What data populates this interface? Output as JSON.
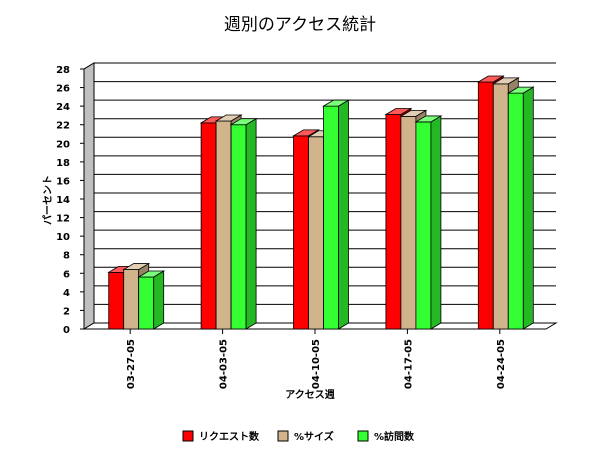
{
  "chart_data": {
    "type": "bar",
    "title": "週別のアクセス統計",
    "xlabel": "アクセス週",
    "ylabel": "パーセント",
    "categories": [
      "03-27-05",
      "04-03-05",
      "04-10-05",
      "04-17-05",
      "04-24-05"
    ],
    "series": [
      {
        "name": "リクエスト数",
        "color": "#ff0000",
        "values": [
          6.1,
          22.2,
          20.8,
          23.1,
          26.6
        ]
      },
      {
        "name": "%サイズ",
        "color": "#d2b48c",
        "values": [
          6.4,
          22.4,
          20.7,
          22.9,
          26.4
        ]
      },
      {
        "name": "%訪問数",
        "color": "#33ff33",
        "values": [
          5.6,
          22.0,
          24.0,
          22.3,
          25.4
        ]
      }
    ],
    "yticks": [
      "0",
      "2",
      "4",
      "6",
      "8",
      "10",
      "12",
      "14",
      "16",
      "18",
      "20",
      "22",
      "24",
      "26",
      "28"
    ],
    "ylim": [
      0,
      28
    ],
    "grid": true,
    "legend_position": "bottom"
  }
}
